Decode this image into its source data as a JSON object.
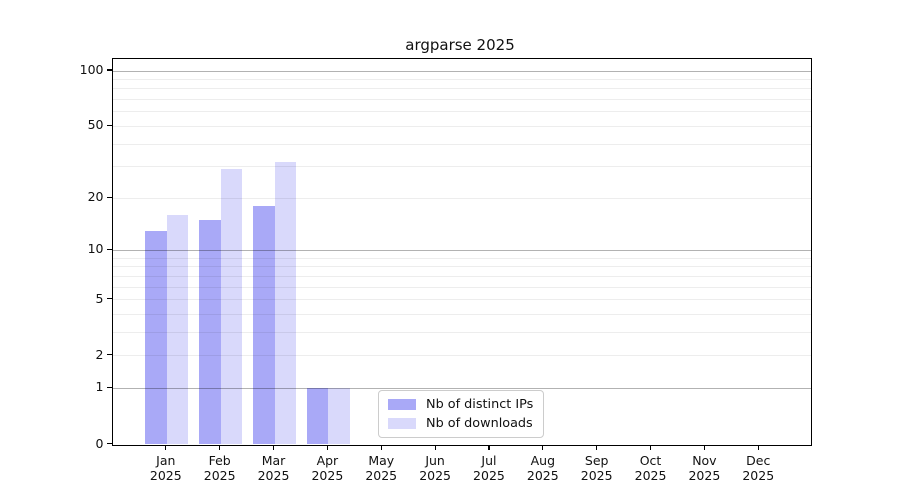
{
  "chart_data": {
    "type": "bar",
    "title": "argparse 2025",
    "categories": [
      "Jan",
      "Feb",
      "Mar",
      "Apr",
      "May",
      "Jun",
      "Jul",
      "Aug",
      "Sep",
      "Oct",
      "Nov",
      "Dec"
    ],
    "category_year": "2025",
    "series": [
      {
        "name": "Nb of distinct IPs",
        "color": "#a9a9f7",
        "values": [
          13,
          15,
          18,
          1,
          0,
          0,
          0,
          0,
          0,
          0,
          0,
          0
        ]
      },
      {
        "name": "Nb of downloads",
        "color": "#d9d9fb",
        "values": [
          16,
          29,
          32,
          1,
          0,
          0,
          0,
          0,
          0,
          0,
          0,
          0
        ]
      }
    ],
    "yscale": "log1p",
    "ylim": [
      0,
      117
    ],
    "y_tick_labels": [
      100,
      50,
      20,
      10,
      5,
      2,
      1,
      0
    ],
    "y_major_gridlines": [
      1,
      10,
      100
    ],
    "y_minor_gridlines": [
      2,
      3,
      4,
      5,
      6,
      7,
      8,
      9,
      20,
      30,
      40,
      50,
      60,
      70,
      80,
      90
    ],
    "grid": "on",
    "legend_position": "lower center"
  }
}
